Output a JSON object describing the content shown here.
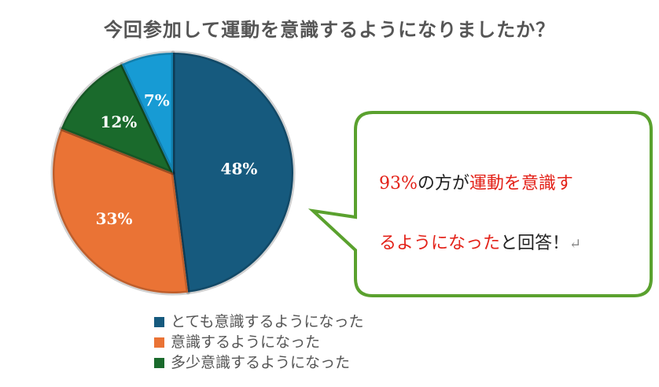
{
  "chart_data": {
    "type": "pie",
    "title": "今回参加して運動を意識するようになりましたか？",
    "categories": [
      "とても意識するようになった",
      "意識するようになった",
      "多少意識するようになった",
      ""
    ],
    "values": [
      48,
      33,
      12,
      7
    ],
    "labels": [
      "48%",
      "33%",
      "12%",
      "7%"
    ],
    "colors": [
      "#165a7e",
      "#ea7335",
      "#1a6a2c",
      "#179bd4"
    ],
    "legend": {
      "placement": "bottom",
      "entries": [
        {
          "label": "とても意識するようになった",
          "color": "#165a7e"
        },
        {
          "label": "意識するようになった",
          "color": "#ea7335"
        },
        {
          "label": "多少意識するようになった",
          "color": "#1a6a2c"
        }
      ]
    }
  },
  "callout": {
    "border_color": "#5aa12e",
    "line1": {
      "red1": "93%",
      "black1": "の方が",
      "red2": "運動を意識す"
    },
    "line2": {
      "red1": "るようになった",
      "black1": "と回答！",
      "mark": "↵"
    }
  }
}
